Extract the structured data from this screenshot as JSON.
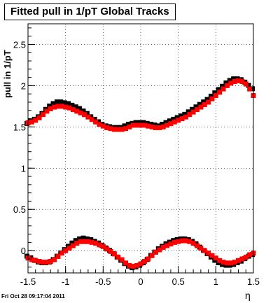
{
  "title": "Fitted pull in 1/pT  Global Tracks",
  "footer": {
    "date": "Fri Oct 28 09:17:04 2011"
  },
  "colors": {
    "series_a": "#000000",
    "series_b": "#ff0000",
    "frame": "#000000",
    "grid": "#000000"
  },
  "chart_data": {
    "type": "scatter",
    "title": "Fitted pull in 1/pT  Global Tracks",
    "xlabel": "η",
    "ylabel": "pull in 1/pT",
    "xlim": [
      -1.5,
      1.5
    ],
    "ylim": [
      -0.27,
      2.75
    ],
    "grid": true,
    "x_ticks": [
      -1.5,
      -1,
      -0.5,
      0,
      0.5,
      1,
      1.5
    ],
    "x_tick_labels": [
      "-1.5",
      "-1",
      "-0.5",
      "0",
      "0.5",
      "1",
      "1.5"
    ],
    "y_ticks": [
      0,
      0.5,
      1,
      1.5,
      2,
      2.5
    ],
    "y_tick_labels": [
      "0",
      "0.5",
      "1",
      "1.5",
      "2",
      "2.5"
    ],
    "x": [
      -1.5,
      -1.45,
      -1.4,
      -1.35,
      -1.3,
      -1.25,
      -1.2,
      -1.15,
      -1.1,
      -1.05,
      -1.0,
      -0.95,
      -0.9,
      -0.85,
      -0.8,
      -0.75,
      -0.7,
      -0.65,
      -0.6,
      -0.55,
      -0.5,
      -0.45,
      -0.4,
      -0.35,
      -0.3,
      -0.25,
      -0.2,
      -0.15,
      -0.1,
      -0.05,
      0.0,
      0.05,
      0.1,
      0.15,
      0.2,
      0.25,
      0.3,
      0.35,
      0.4,
      0.45,
      0.5,
      0.55,
      0.6,
      0.65,
      0.7,
      0.75,
      0.8,
      0.85,
      0.9,
      0.95,
      1.0,
      1.05,
      1.1,
      1.15,
      1.2,
      1.25,
      1.3,
      1.35,
      1.4,
      1.45,
      1.5
    ],
    "series": [
      {
        "group": "upper",
        "color": "#000000",
        "y": [
          1.53,
          1.56,
          1.58,
          1.61,
          1.65,
          1.7,
          1.74,
          1.77,
          1.79,
          1.79,
          1.78,
          1.77,
          1.75,
          1.73,
          1.71,
          1.68,
          1.65,
          1.61,
          1.58,
          1.55,
          1.52,
          1.5,
          1.49,
          1.48,
          1.48,
          1.48,
          1.5,
          1.52,
          1.53,
          1.54,
          1.54,
          1.54,
          1.53,
          1.52,
          1.51,
          1.5,
          1.52,
          1.54,
          1.56,
          1.58,
          1.6,
          1.62,
          1.64,
          1.67,
          1.7,
          1.73,
          1.76,
          1.79,
          1.82,
          1.86,
          1.9,
          1.94,
          1.98,
          2.02,
          2.05,
          2.07,
          2.07,
          2.06,
          2.03,
          1.99,
          1.95
        ]
      },
      {
        "group": "upper",
        "color": "#ff0000",
        "y": [
          1.55,
          1.56,
          1.58,
          1.61,
          1.65,
          1.69,
          1.72,
          1.74,
          1.75,
          1.75,
          1.74,
          1.73,
          1.71,
          1.69,
          1.67,
          1.65,
          1.62,
          1.59,
          1.56,
          1.53,
          1.51,
          1.49,
          1.48,
          1.47,
          1.47,
          1.47,
          1.48,
          1.5,
          1.52,
          1.52,
          1.52,
          1.52,
          1.51,
          1.5,
          1.49,
          1.49,
          1.5,
          1.52,
          1.54,
          1.56,
          1.58,
          1.6,
          1.62,
          1.65,
          1.68,
          1.71,
          1.74,
          1.77,
          1.8,
          1.84,
          1.88,
          1.92,
          1.96,
          2.0,
          2.03,
          2.05,
          2.06,
          2.05,
          2.02,
          1.96,
          1.88
        ]
      },
      {
        "group": "lower",
        "color": "#000000",
        "y": [
          -0.08,
          -0.1,
          -0.13,
          -0.15,
          -0.16,
          -0.16,
          -0.15,
          -0.12,
          -0.08,
          -0.04,
          0.0,
          0.04,
          0.08,
          0.11,
          0.13,
          0.14,
          0.13,
          0.12,
          0.1,
          0.08,
          0.05,
          0.02,
          -0.01,
          -0.05,
          -0.09,
          -0.13,
          -0.17,
          -0.2,
          -0.22,
          -0.21,
          -0.19,
          -0.16,
          -0.12,
          -0.07,
          -0.03,
          0.01,
          0.04,
          0.07,
          0.09,
          0.11,
          0.12,
          0.13,
          0.13,
          0.12,
          0.1,
          0.07,
          0.03,
          -0.01,
          -0.05,
          -0.09,
          -0.13,
          -0.16,
          -0.18,
          -0.19,
          -0.19,
          -0.18,
          -0.16,
          -0.14,
          -0.11,
          -0.08,
          -0.06
        ]
      },
      {
        "group": "lower",
        "color": "#ff0000",
        "y": [
          -0.09,
          -0.11,
          -0.12,
          -0.13,
          -0.14,
          -0.14,
          -0.13,
          -0.11,
          -0.07,
          -0.03,
          0.0,
          0.03,
          0.06,
          0.09,
          0.11,
          0.11,
          0.11,
          0.1,
          0.09,
          0.07,
          0.05,
          0.02,
          -0.01,
          -0.04,
          -0.08,
          -0.11,
          -0.15,
          -0.18,
          -0.19,
          -0.18,
          -0.16,
          -0.13,
          -0.1,
          -0.06,
          -0.02,
          0.01,
          0.04,
          0.06,
          0.08,
          0.1,
          0.11,
          0.12,
          0.12,
          0.11,
          0.09,
          0.06,
          0.03,
          0.0,
          -0.03,
          -0.06,
          -0.09,
          -0.12,
          -0.14,
          -0.15,
          -0.15,
          -0.14,
          -0.12,
          -0.1,
          -0.08,
          -0.05,
          -0.03
        ]
      }
    ]
  }
}
